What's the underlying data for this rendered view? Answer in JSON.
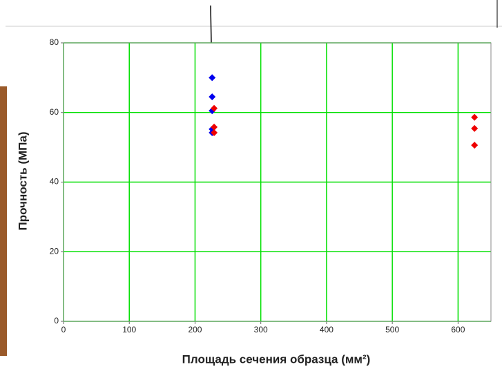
{
  "chart_data": {
    "type": "scatter",
    "x_label": "Площадь сечения образца (мм²)",
    "y_label": "Прочность (МПа)",
    "xlim": [
      0,
      650
    ],
    "xticks": [
      0,
      100,
      200,
      300,
      400,
      500,
      600
    ],
    "ylim": [
      0,
      80
    ],
    "yticks": [
      0,
      20,
      40,
      60,
      80
    ],
    "grid": true,
    "grid_color": "#00e000",
    "series": [
      {
        "color": "#0000ee",
        "x": [
          226,
          226,
          226,
          226,
          226
        ],
        "values": [
          70,
          64.5,
          60.5,
          55.2,
          54.2
        ]
      },
      {
        "color": "#ee0000",
        "x": [
          229,
          229,
          229,
          625,
          625,
          625
        ],
        "values": [
          61.2,
          55.8,
          54.2,
          58.6,
          55.4,
          50.6
        ]
      }
    ]
  }
}
